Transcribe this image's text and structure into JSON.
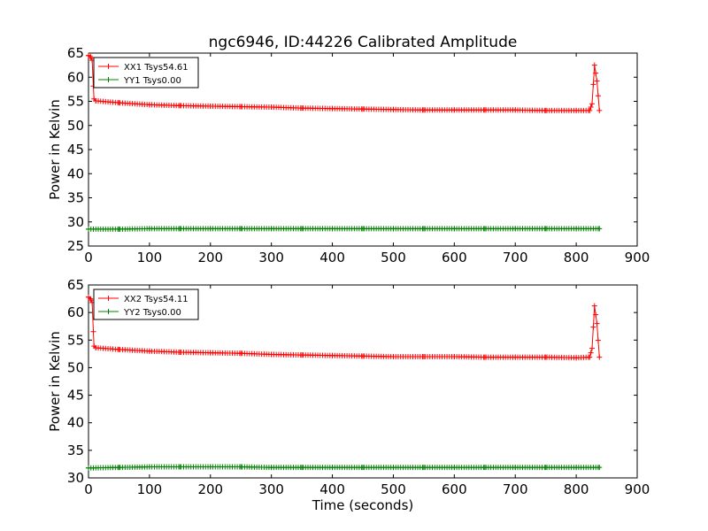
{
  "figure": {
    "title": "ngc6946, ID:44226 Calibrated Amplitude"
  },
  "chart_data": [
    {
      "type": "line",
      "ylabel": "Power in Kelvin",
      "xlabel": "",
      "xlim": [
        0,
        900
      ],
      "ylim": [
        25,
        65
      ],
      "xticks": [
        0,
        100,
        200,
        300,
        400,
        500,
        600,
        700,
        800,
        900
      ],
      "yticks": [
        25,
        30,
        35,
        40,
        45,
        50,
        55,
        60,
        65
      ],
      "grid": false,
      "legend_position": "top-left",
      "series": [
        {
          "name": "XX1 Tsys54.61",
          "color": "#ff0000",
          "x": [
            0,
            3,
            6,
            9,
            12,
            50,
            100,
            150,
            200,
            250,
            300,
            350,
            400,
            450,
            500,
            550,
            600,
            650,
            700,
            750,
            800,
            822,
            826,
            830,
            834,
            838
          ],
          "y": [
            64.5,
            64.3,
            63.5,
            55.5,
            55.1,
            54.7,
            54.3,
            54.1,
            54.0,
            53.9,
            53.8,
            53.6,
            53.5,
            53.4,
            53.3,
            53.2,
            53.2,
            53.2,
            53.2,
            53.1,
            53.1,
            53.1,
            54.5,
            62.5,
            59.2,
            53.1
          ]
        },
        {
          "name": "YY1 Tsys0.00",
          "color": "#008000",
          "x": [
            0,
            50,
            100,
            150,
            200,
            250,
            300,
            350,
            400,
            450,
            500,
            550,
            600,
            650,
            700,
            750,
            800,
            838
          ],
          "y": [
            28.5,
            28.5,
            28.6,
            28.6,
            28.6,
            28.6,
            28.6,
            28.6,
            28.6,
            28.6,
            28.6,
            28.6,
            28.6,
            28.6,
            28.6,
            28.6,
            28.6,
            28.6
          ]
        }
      ]
    },
    {
      "type": "line",
      "ylabel": "Power in Kelvin",
      "xlabel": "Time (seconds)",
      "xlim": [
        0,
        900
      ],
      "ylim": [
        30,
        65
      ],
      "xticks": [
        0,
        100,
        200,
        300,
        400,
        500,
        600,
        700,
        800,
        900
      ],
      "yticks": [
        30,
        35,
        40,
        45,
        50,
        55,
        60,
        65
      ],
      "grid": false,
      "legend_position": "top-left",
      "series": [
        {
          "name": "XX2 Tsys54.11",
          "color": "#ff0000",
          "x": [
            0,
            3,
            6,
            9,
            12,
            50,
            100,
            150,
            200,
            250,
            300,
            350,
            400,
            450,
            500,
            550,
            600,
            650,
            700,
            750,
            800,
            822,
            826,
            830,
            834,
            838
          ],
          "y": [
            62.8,
            62.5,
            61.8,
            53.9,
            53.6,
            53.3,
            53.0,
            52.8,
            52.7,
            52.6,
            52.4,
            52.3,
            52.2,
            52.1,
            52.0,
            52.0,
            52.0,
            51.9,
            51.9,
            51.9,
            51.8,
            51.9,
            53.5,
            61.2,
            58.0,
            51.9
          ]
        },
        {
          "name": "YY2 Tsys0.00",
          "color": "#008000",
          "x": [
            0,
            50,
            100,
            150,
            200,
            250,
            300,
            350,
            400,
            450,
            500,
            550,
            600,
            650,
            700,
            750,
            800,
            838
          ],
          "y": [
            31.8,
            31.9,
            32.0,
            32.0,
            32.0,
            32.0,
            31.9,
            31.9,
            31.9,
            31.9,
            31.9,
            31.9,
            31.9,
            31.9,
            31.9,
            31.9,
            31.9,
            31.9
          ]
        }
      ]
    }
  ]
}
